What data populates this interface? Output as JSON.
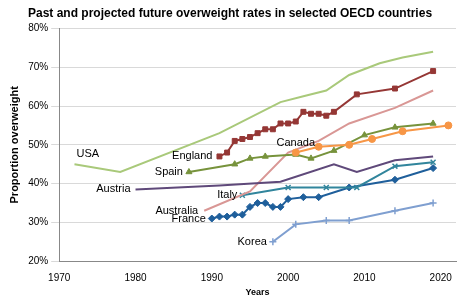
{
  "chart_data": {
    "type": "line",
    "title": "Past and projected future overweight rates in selected OECD countries",
    "x_label": "Years",
    "y_label": "Proportion overweight",
    "xlim": [
      1970,
      2022
    ],
    "xticks": [
      1970,
      1980,
      1990,
      2000,
      2010,
      2020
    ],
    "ylim": [
      20,
      80
    ],
    "yticks": [
      {
        "value": 20,
        "label": "20%"
      },
      {
        "value": 30,
        "label": "30%"
      },
      {
        "value": 40,
        "label": "40%"
      },
      {
        "value": 50,
        "label": "50%"
      },
      {
        "value": 60,
        "label": "60%"
      },
      {
        "value": 70,
        "label": "70%"
      },
      {
        "value": 80,
        "label": "80%"
      }
    ],
    "grid": "y",
    "series": [
      {
        "name": "USA",
        "color": "#a9c97a",
        "marker": "none",
        "x": [
          1972,
          1978,
          1991,
          1999,
          2002,
          2005,
          2008,
          2012,
          2015,
          2019
        ],
        "values": [
          45,
          43,
          53,
          61,
          62.5,
          64,
          68,
          71,
          72.5,
          74
        ]
      },
      {
        "name": "England",
        "color": "#953735",
        "marker": "square",
        "x": [
          1991,
          1992,
          1993,
          1994,
          1995,
          1996,
          1997,
          1998,
          1999,
          2000,
          2001,
          2002,
          2003,
          2004,
          2005,
          2006,
          2009,
          2014,
          2019
        ],
        "values": [
          47,
          48,
          51,
          51.5,
          52,
          53,
          54,
          54,
          55.5,
          55.5,
          56,
          58.5,
          58,
          58,
          57.5,
          58.5,
          63,
          64.5,
          69
        ]
      },
      {
        "name": "Canada",
        "color": "#f79646",
        "marker": "circle",
        "x": [
          2001,
          2004,
          2008,
          2011,
          2015,
          2021
        ],
        "values": [
          48,
          49.5,
          50,
          51.5,
          53.5,
          55
        ]
      },
      {
        "name": "Spain",
        "color": "#77933c",
        "marker": "triangle",
        "x": [
          1987,
          1993,
          1995,
          1997,
          2001,
          2003,
          2006,
          2010,
          2014,
          2019
        ],
        "values": [
          43,
          45,
          46.5,
          47,
          47.5,
          46.5,
          48.5,
          52.5,
          54.5,
          55.5
        ]
      },
      {
        "name": "Austria",
        "color": "#5f497a",
        "marker": "none",
        "x": [
          1980,
          1991,
          1999,
          2006,
          2009,
          2014,
          2019
        ],
        "values": [
          38.5,
          39.5,
          40.5,
          45,
          43,
          46,
          47
        ]
      },
      {
        "name": "Australia",
        "color": "#d99795",
        "marker": "none",
        "x": [
          1989,
          1995,
          2000,
          2004,
          2008,
          2014,
          2019
        ],
        "values": [
          33,
          38,
          48,
          51,
          55.5,
          59.5,
          64
        ]
      },
      {
        "name": "Italy",
        "color": "#31859c",
        "marker": "x",
        "x": [
          1994,
          2000,
          2005,
          2009,
          2014,
          2019
        ],
        "values": [
          37,
          39,
          39,
          39,
          44.5,
          45.5
        ]
      },
      {
        "name": "France",
        "color": "#1f5f9b",
        "marker": "diamond",
        "x": [
          1990,
          1991,
          1992,
          1993,
          1994,
          1995,
          1996,
          1997,
          1998,
          1999,
          2000,
          2002,
          2004,
          2008,
          2014,
          2019
        ],
        "values": [
          31,
          31.5,
          31.5,
          32,
          32,
          34,
          35,
          35,
          34,
          34,
          36,
          36.5,
          36.5,
          39,
          41,
          44
        ]
      },
      {
        "name": "Korea",
        "color": "#7f9fd0",
        "marker": "plus",
        "x": [
          1998,
          2001,
          2005,
          2008,
          2014,
          2019
        ],
        "values": [
          25,
          29.5,
          30.5,
          30.5,
          33,
          35
        ]
      }
    ]
  }
}
